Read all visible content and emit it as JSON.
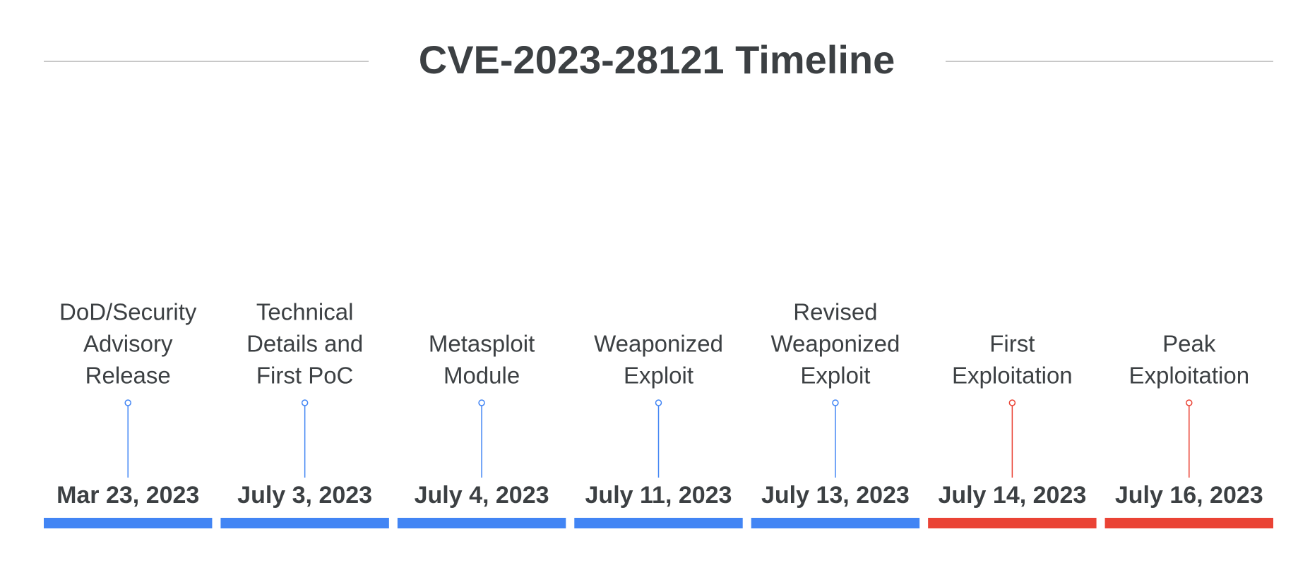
{
  "header": {
    "title": "CVE-2023-28121 Timeline"
  },
  "events": [
    {
      "label": [
        "DoD/Security",
        "Advisory",
        "Release"
      ],
      "date": "Mar 23, 2023",
      "color": "#4285f4"
    },
    {
      "label": [
        "Technical",
        "Details and",
        "First PoC"
      ],
      "date": "July 3, 2023",
      "color": "#4285f4"
    },
    {
      "label": [
        "Metasploit",
        "Module"
      ],
      "date": "July 4, 2023",
      "color": "#4285f4"
    },
    {
      "label": [
        "Weaponized",
        "Exploit"
      ],
      "date": "July 11, 2023",
      "color": "#4285f4"
    },
    {
      "label": [
        "Revised",
        "Weaponized",
        "Exploit"
      ],
      "date": "July 13, 2023",
      "color": "#4285f4"
    },
    {
      "label": [
        "First",
        "Exploitation"
      ],
      "date": "July 14, 2023",
      "color": "#ea4335"
    },
    {
      "label": [
        "Peak",
        "Exploitation"
      ],
      "date": "July 16, 2023",
      "color": "#ea4335"
    }
  ]
}
